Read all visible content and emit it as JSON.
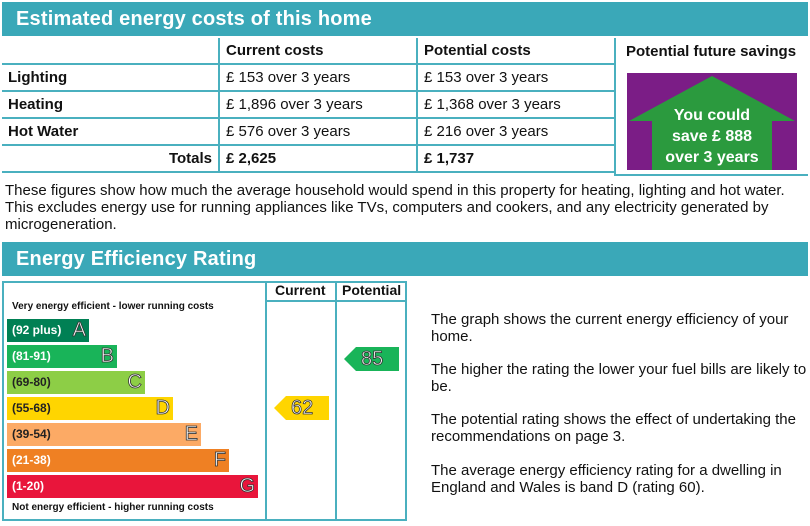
{
  "costs_section": {
    "title": "Estimated energy costs of this home",
    "col_current": "Current costs",
    "col_potential": "Potential costs",
    "col_savings": "Potential future savings",
    "rows": [
      {
        "label": "Lighting",
        "current": "£ 153 over 3 years",
        "potential": "£ 153 over 3 years"
      },
      {
        "label": "Heating",
        "current": "£ 1,896 over 3 years",
        "potential": "£ 1,368 over 3 years"
      },
      {
        "label": "Hot Water",
        "current": "£ 576 over 3 years",
        "potential": "£ 216 over 3 years"
      }
    ],
    "totals": {
      "label": "Totals",
      "current": "£ 2,625",
      "potential": "£ 1,737"
    },
    "savings_text": [
      "You could",
      "save £ 888",
      "over 3 years"
    ],
    "note": "These figures show how much the average household would spend in this property for heating, lighting and hot water. This excludes energy use for running appliances like TVs, computers and cookers, and any electricity generated by microgeneration."
  },
  "rating_section": {
    "title": "Energy Efficiency Rating",
    "col_current": "Current",
    "col_potential": "Potential",
    "top_label": "Very energy efficient - lower running costs",
    "bottom_label": "Not energy efficient - higher running costs",
    "bands": [
      {
        "range": "(92 plus)",
        "letter": "A",
        "color": "#008054"
      },
      {
        "range": "(81-91)",
        "letter": "B",
        "color": "#19b459"
      },
      {
        "range": "(69-80)",
        "letter": "C",
        "color": "#8dce46"
      },
      {
        "range": "(55-68)",
        "letter": "D",
        "color": "#ffd500"
      },
      {
        "range": "(39-54)",
        "letter": "E",
        "color": "#fcaa65"
      },
      {
        "range": "(21-38)",
        "letter": "F",
        "color": "#ef8023"
      },
      {
        "range": "(1-20)",
        "letter": "G",
        "color": "#e9153b"
      }
    ],
    "current_rating": "62",
    "potential_rating": "85",
    "current_color": "#ffd500",
    "potential_color": "#19b459",
    "explanations": [
      "The graph shows the current energy efficiency of your home.",
      "The higher the rating the lower your fuel bills are likely to be.",
      "The potential rating shows the effect of undertaking the recommendations on page 3.",
      "The average energy efficiency rating for a dwelling in England and Wales is band D (rating 60)."
    ]
  },
  "colors": {
    "accent": "#3aa8b8",
    "savings_purple": "#7b1d86",
    "savings_green": "#2b9a3e"
  }
}
